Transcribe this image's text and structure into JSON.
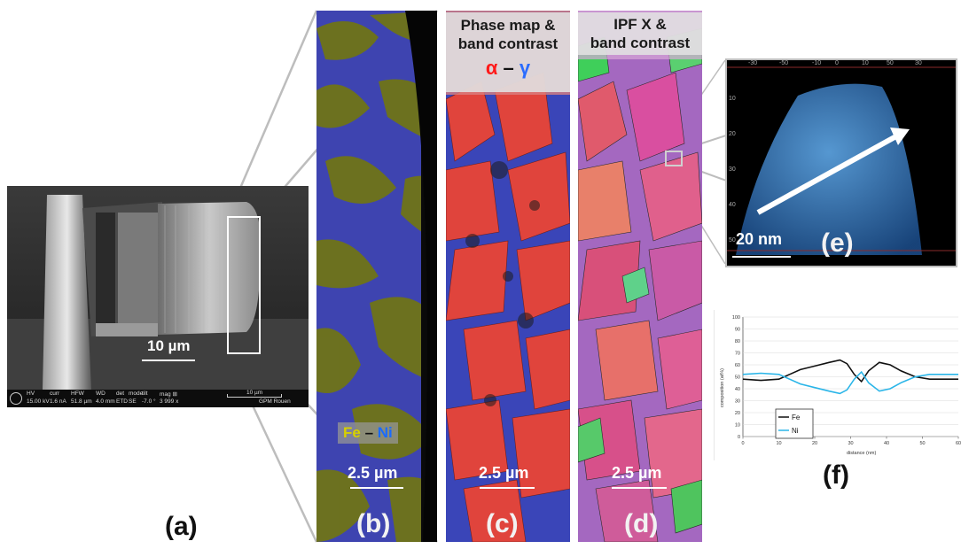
{
  "panel_a": {
    "label": "(a)",
    "scale_text": "10 µm",
    "databar": {
      "headers": [
        "HV",
        "curr",
        "HFW",
        "WD",
        "det",
        "mode",
        "tilt",
        "mag ⊞"
      ],
      "values": [
        "15.00 kV",
        "1.6 nA",
        "51.8 µm",
        "4.0 mm",
        "ETD",
        "SE",
        "-7.0 °",
        "3 999 x"
      ],
      "scalebar_text": "10 µm",
      "lab": "GPM Rouen"
    }
  },
  "panel_b": {
    "label": "(b)",
    "legend_fe": "Fe",
    "legend_dash": " – ",
    "legend_ni": "Ni",
    "scale_text": "2.5 µm"
  },
  "panel_c": {
    "label": "(c)",
    "header_line1": "Phase map &",
    "header_line2": "band contrast",
    "alpha": "α",
    "dash": " – ",
    "gamma": "γ",
    "scale_text": "2.5 µm"
  },
  "panel_d": {
    "label": "(d)",
    "header_line1": "IPF X &",
    "header_line2": "band contrast",
    "scale_text": "2.5 µm"
  },
  "panel_e": {
    "label": "(e)",
    "scale_text": "20 nm",
    "top_ticks": [
      "-30",
      "-50",
      "-10",
      "0",
      "10",
      "50",
      "30"
    ],
    "side_ticks": [
      "10",
      "20",
      "30",
      "40",
      "50"
    ]
  },
  "panel_f": {
    "label": "(f)"
  },
  "colors": {
    "fe": "#d6d000",
    "ni": "#1a6bff",
    "alpha": "#ff1a1a",
    "gamma": "#2a6cff",
    "fe_line": "#111111",
    "ni_line": "#2ab5e8"
  },
  "chart_data": {
    "type": "line",
    "title": "",
    "xlabel": "distance (nm)",
    "ylabel": "composition (at%)",
    "xlim": [
      0,
      60
    ],
    "ylim": [
      0,
      100
    ],
    "xticks": [
      0,
      10,
      20,
      30,
      40,
      50,
      60
    ],
    "yticks": [
      0,
      10,
      20,
      30,
      40,
      50,
      60,
      70,
      80,
      90,
      100
    ],
    "legend_position": "bottom-left",
    "series": [
      {
        "name": "Fe",
        "x": [
          0,
          5,
          10,
          13,
          16,
          20,
          24,
          27,
          29,
          31,
          33,
          35,
          38,
          41,
          44,
          48,
          52,
          56,
          60
        ],
        "y": [
          48,
          47,
          48,
          52,
          56,
          59,
          62,
          64,
          61,
          52,
          46,
          55,
          62,
          60,
          55,
          50,
          48,
          48,
          48
        ]
      },
      {
        "name": "Ni",
        "x": [
          0,
          5,
          10,
          13,
          16,
          20,
          24,
          27,
          29,
          31,
          33,
          35,
          38,
          41,
          44,
          48,
          52,
          56,
          60
        ],
        "y": [
          52,
          53,
          52,
          48,
          44,
          41,
          38,
          36,
          39,
          48,
          54,
          45,
          38,
          40,
          45,
          50,
          52,
          52,
          52
        ]
      }
    ]
  }
}
